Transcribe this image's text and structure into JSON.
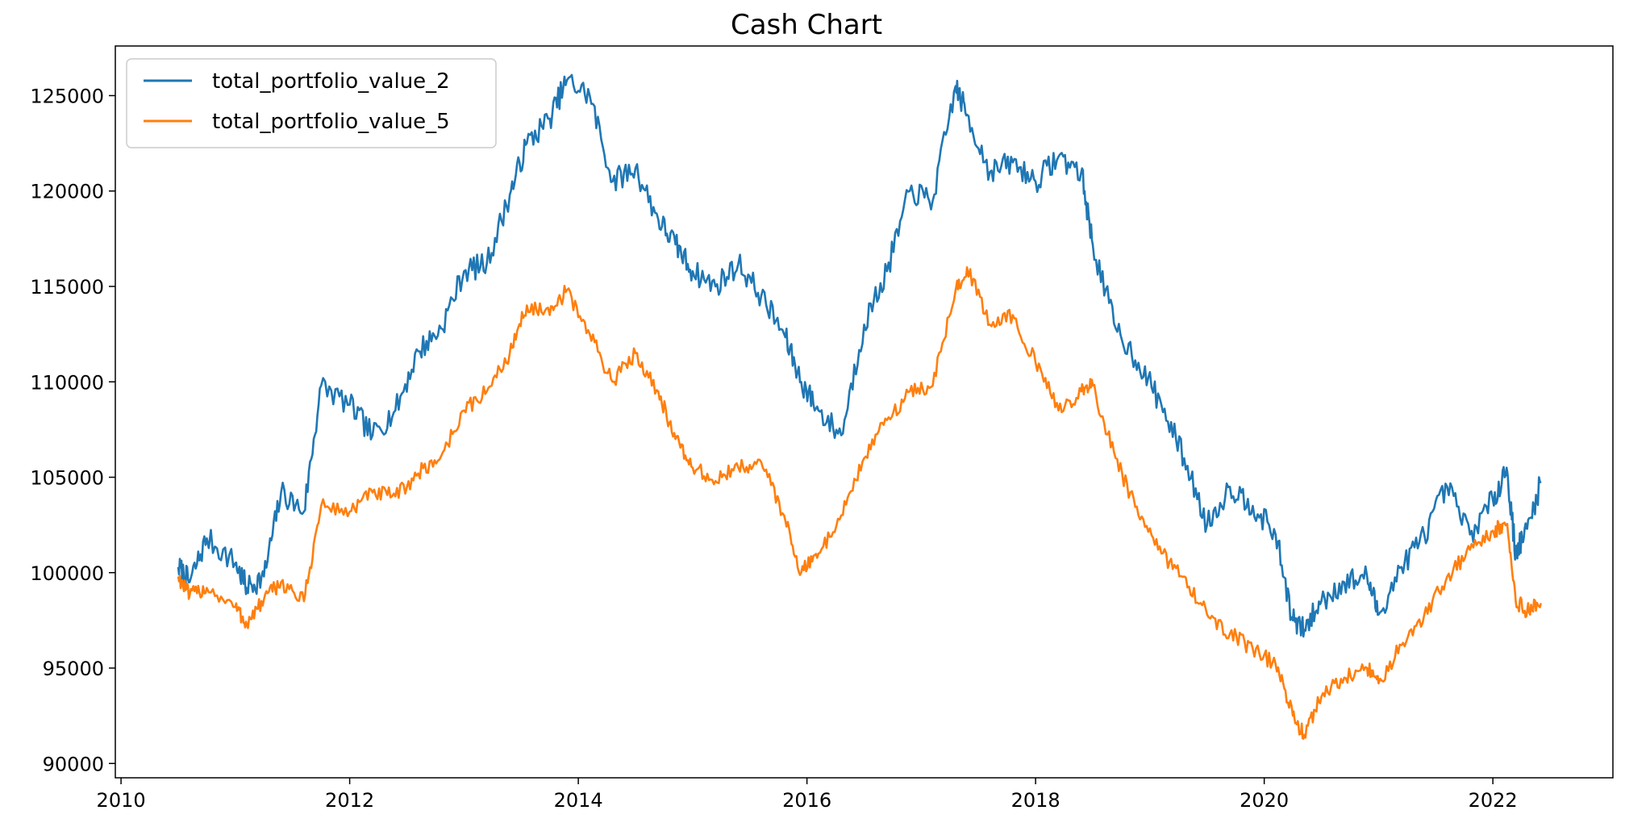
{
  "chart_data": {
    "type": "line",
    "title": "Cash Chart",
    "xlabel": "",
    "ylabel": "",
    "xlim": [
      2009.95,
      2023.05
    ],
    "ylim": [
      89250,
      127600
    ],
    "xticks": [
      2010,
      2012,
      2014,
      2016,
      2018,
      2020,
      2022
    ],
    "yticks": [
      90000,
      95000,
      100000,
      105000,
      110000,
      115000,
      120000,
      125000
    ],
    "grid": false,
    "legend_position": "top-left",
    "x": [
      2010.5,
      2010.6,
      2010.75,
      2011.0,
      2011.1,
      2011.25,
      2011.4,
      2011.6,
      2011.75,
      2012.0,
      2012.2,
      2012.4,
      2012.6,
      2012.8,
      2013.0,
      2013.2,
      2013.4,
      2013.55,
      2013.75,
      2013.9,
      2014.1,
      2014.3,
      2014.5,
      2014.7,
      2014.85,
      2015.0,
      2015.2,
      2015.4,
      2015.6,
      2015.8,
      2015.95,
      2016.1,
      2016.3,
      2016.5,
      2016.7,
      2016.9,
      2017.1,
      2017.3,
      2017.4,
      2017.6,
      2017.8,
      2018.0,
      2018.2,
      2018.4,
      2018.5,
      2018.7,
      2018.9,
      2019.1,
      2019.3,
      2019.5,
      2019.7,
      2019.9,
      2020.1,
      2020.25,
      2020.35,
      2020.5,
      2020.7,
      2020.9,
      2021.0,
      2021.2,
      2021.4,
      2021.6,
      2021.8,
      2022.0,
      2022.12,
      2022.2,
      2022.3,
      2022.42
    ],
    "series": [
      {
        "name": "total_portfolio_value_2",
        "color": "#1f77b4",
        "values": [
          100300,
          99500,
          101800,
          100500,
          99200,
          99800,
          104200,
          103200,
          109800,
          108800,
          107200,
          108500,
          111600,
          112800,
          115800,
          116200,
          119800,
          122500,
          123800,
          125800,
          125000,
          120500,
          121200,
          118500,
          117200,
          115800,
          115000,
          116200,
          114500,
          112500,
          110000,
          108500,
          107200,
          113000,
          115800,
          120000,
          119500,
          125500,
          124000,
          121000,
          121500,
          120500,
          121800,
          121000,
          117200,
          112800,
          111000,
          108800,
          106000,
          102500,
          104500,
          103500,
          102000,
          97500,
          97000,
          98500,
          99500,
          99800,
          97800,
          100300,
          102000,
          104500,
          102000,
          103800,
          105500,
          101000,
          102300,
          104700
        ]
      },
      {
        "name": "total_portfolio_value_5",
        "color": "#ff7f0e",
        "values": [
          99800,
          98800,
          99200,
          98200,
          97300,
          98600,
          99500,
          98500,
          103500,
          103200,
          104200,
          104000,
          105200,
          106100,
          108500,
          109500,
          111500,
          114000,
          113500,
          114800,
          112500,
          110000,
          111500,
          109500,
          107000,
          105500,
          104800,
          105500,
          105800,
          103000,
          100000,
          101000,
          103000,
          106000,
          108000,
          109500,
          109800,
          114800,
          116000,
          113000,
          113500,
          111000,
          108500,
          109500,
          109800,
          106000,
          103000,
          101000,
          99800,
          97800,
          96800,
          96000,
          95200,
          92500,
          91500,
          93500,
          94500,
          95000,
          94200,
          96200,
          97800,
          99800,
          101200,
          102200,
          102500,
          98500,
          98000,
          98400
        ]
      }
    ]
  }
}
